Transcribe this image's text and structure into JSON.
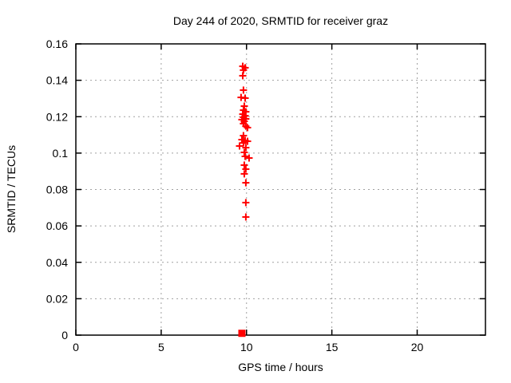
{
  "title": "Day 244 of 2020, SRMTID for receiver graz",
  "chart_data": {
    "type": "scatter",
    "title": "Day 244 of 2020, SRMTID for receiver graz",
    "xlabel": "GPS time / hours",
    "ylabel": "SRMTID / TECUs",
    "xlim": [
      0,
      24
    ],
    "ylim": [
      0,
      0.16
    ],
    "xticks": [
      0,
      5,
      10,
      15,
      20
    ],
    "xtick_labels": [
      "0",
      "5",
      "10",
      "15",
      "20"
    ],
    "yticks": [
      0,
      0.02,
      0.04,
      0.06,
      0.08,
      0.1,
      0.12,
      0.14,
      0.16
    ],
    "ytick_labels": [
      "0",
      "0.02",
      "0.04",
      "0.06",
      "0.08",
      "0.1",
      "0.12",
      "0.14",
      "0.16"
    ],
    "grid": true,
    "legend": "none",
    "colors": {
      "marker": "#ff0000",
      "grid": "#a0a0a0",
      "border": "#000000",
      "background": "#ffffff"
    },
    "series": [
      {
        "name": "SRMTID values",
        "marker": "plus",
        "points": [
          [
            9.78,
            0.1477
          ],
          [
            9.92,
            0.1469
          ],
          [
            9.82,
            0.1456
          ],
          [
            9.78,
            0.1425
          ],
          [
            9.82,
            0.1346
          ],
          [
            9.68,
            0.1306
          ],
          [
            9.92,
            0.1302
          ],
          [
            9.87,
            0.1258
          ],
          [
            9.82,
            0.1236
          ],
          [
            9.96,
            0.1227
          ],
          [
            9.78,
            0.1214
          ],
          [
            9.92,
            0.1205
          ],
          [
            9.82,
            0.1197
          ],
          [
            9.96,
            0.1188
          ],
          [
            9.73,
            0.1184
          ],
          [
            9.87,
            0.1175
          ],
          [
            9.82,
            0.1162
          ],
          [
            9.96,
            0.1148
          ],
          [
            10.06,
            0.114
          ],
          [
            9.82,
            0.1096
          ],
          [
            9.73,
            0.1074
          ],
          [
            9.92,
            0.107
          ],
          [
            10.06,
            0.1065
          ],
          [
            9.82,
            0.1056
          ],
          [
            9.59,
            0.1039
          ],
          [
            9.96,
            0.103
          ],
          [
            9.87,
            0.1004
          ],
          [
            9.92,
            0.0982
          ],
          [
            10.15,
            0.0973
          ],
          [
            9.87,
            0.0934
          ],
          [
            9.96,
            0.0912
          ],
          [
            9.87,
            0.0886
          ],
          [
            9.96,
            0.0837
          ],
          [
            9.96,
            0.0728
          ],
          [
            9.96,
            0.0649
          ]
        ]
      },
      {
        "name": "zero cluster",
        "marker": "square",
        "points": [
          [
            9.73,
            0.001
          ]
        ]
      }
    ]
  }
}
